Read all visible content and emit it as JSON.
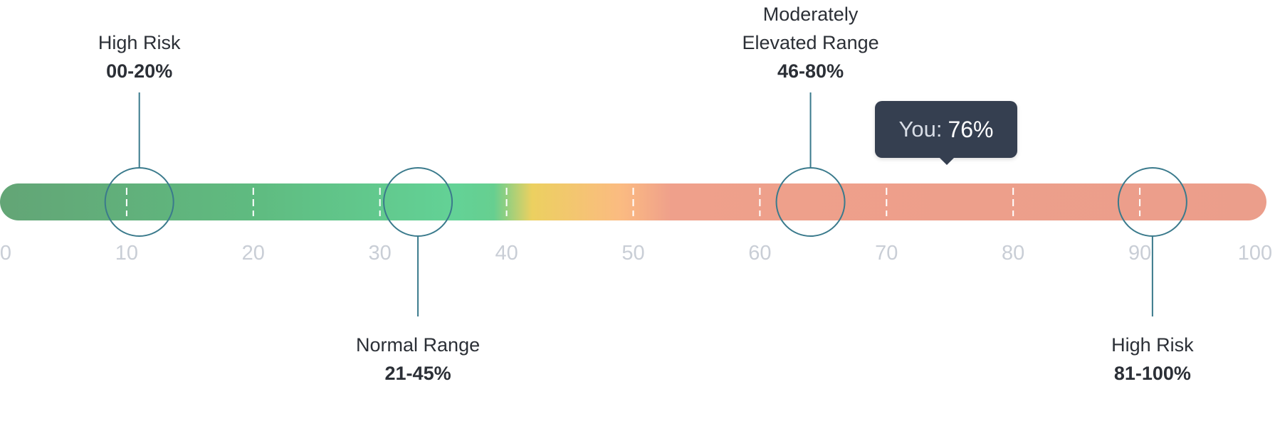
{
  "chart_data": {
    "type": "gauge",
    "axis": {
      "min": 0,
      "max": 100,
      "ticks": [
        0,
        10,
        20,
        30,
        40,
        50,
        60,
        70,
        80,
        90,
        100
      ]
    },
    "gradient_stops": [
      {
        "value": 0,
        "color": "#63a576"
      },
      {
        "value": 20,
        "color": "#5fbb80"
      },
      {
        "value": 36,
        "color": "#63d296"
      },
      {
        "value": 39,
        "color": "#66cf90"
      },
      {
        "value": 42,
        "color": "#ecd060"
      },
      {
        "value": 49,
        "color": "#fbbb81"
      },
      {
        "value": 53,
        "color": "#efa08b"
      },
      {
        "value": 100,
        "color": "#eb9e8b"
      }
    ],
    "ranges": [
      {
        "label": "High Risk",
        "range": "00-20%",
        "marker_value": 11,
        "position": "above"
      },
      {
        "label": "Normal Range",
        "range": "21-45%",
        "marker_value": 33,
        "position": "below"
      },
      {
        "label": "Moderately Elevated Range",
        "label_lines": [
          "Moderately",
          "Elevated Range"
        ],
        "range": "46-80%",
        "marker_value": 64,
        "position": "above"
      },
      {
        "label": "High Risk",
        "range": "81-100%",
        "marker_value": 91,
        "position": "below"
      }
    ],
    "you": {
      "label": "You:",
      "value_text": "76%",
      "value": 76
    },
    "colors": {
      "marker_stroke": "#3a7a8c",
      "tick_text": "#c9ced6",
      "tooltip_bg": "#353f50"
    }
  }
}
